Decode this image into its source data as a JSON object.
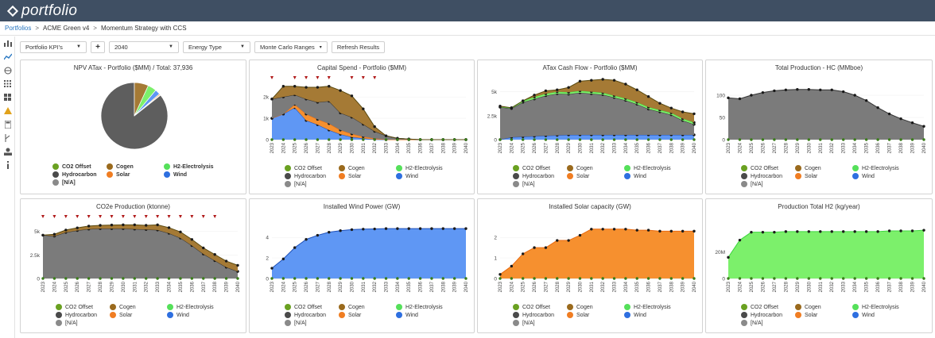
{
  "app": {
    "logo": "portfolio"
  },
  "breadcrumb": {
    "root": "Portfolios",
    "project": "ACME Green v4",
    "scenario": "Momentum Strategy with CCS",
    "sep": ">"
  },
  "sidebar": {
    "icons": [
      "bar-chart-icon",
      "line-chart-icon",
      "globe-icon",
      "grid-icon",
      "dashboard-icon",
      "warning-icon",
      "calculator-icon",
      "branch-icon",
      "upload-user-icon",
      "info-icon"
    ]
  },
  "toolbar": {
    "kpi_select": "Portfolio KPI's",
    "add_label": "+",
    "year_select": "2040",
    "energy_select": "Energy Type",
    "monte_carlo": "Monte Carlo Ranges",
    "refresh": "Refresh Results"
  },
  "legend": {
    "items": [
      {
        "label": "CO2 Offset",
        "color": "#6aa121"
      },
      {
        "label": "Cogen",
        "color": "#9a6a1d"
      },
      {
        "label": "H2-Electrolysis",
        "color": "#55e05a"
      },
      {
        "label": "Hydrocarbon",
        "color": "#4a4a4a"
      },
      {
        "label": "Solar",
        "color": "#f07d22"
      },
      {
        "label": "Wind",
        "color": "#2e6fe0"
      },
      {
        "label": "[N/A]",
        "color": "#8a8a8a"
      }
    ]
  },
  "years": [
    "2023",
    "2024",
    "2025",
    "2026",
    "2027",
    "2028",
    "2029",
    "2030",
    "2031",
    "2032",
    "2033",
    "2034",
    "2035",
    "2036",
    "2037",
    "2038",
    "2039",
    "2040"
  ],
  "colors": {
    "hydrocarbon": "#7b7b7b",
    "cogen": "#a57a35",
    "h2": "#7cf06b",
    "wind": "#5f97f4",
    "solar": "#f6902f",
    "marker": "#b01818"
  },
  "chart_data": [
    {
      "type": "pie",
      "title": "NPV ATax - Portfolio ($MM) / Total: 37,936",
      "slices": [
        {
          "name": "Hydrocarbon",
          "value": 32500
        },
        {
          "name": "Cogen",
          "value": 2600
        },
        {
          "name": "H2-Electrolysis",
          "value": 1600
        },
        {
          "name": "Wind",
          "value": 950
        },
        {
          "name": "Solar",
          "value": 200
        },
        {
          "name": "CO2 Offset",
          "value": 86
        }
      ]
    },
    {
      "type": "area",
      "title": "Capital Spend - Portfolio ($MM)",
      "ylim": [
        0,
        2600
      ],
      "yticks": [
        "0",
        "1k",
        "2k"
      ],
      "ytick_values": [
        0,
        1000,
        2000
      ],
      "series": [
        {
          "name": "Wind",
          "values": [
            1000,
            1200,
            1500,
            900,
            700,
            450,
            250,
            120,
            60,
            10,
            0,
            0,
            0,
            0,
            0,
            0,
            0,
            0
          ]
        },
        {
          "name": "Solar",
          "values": [
            0,
            0,
            150,
            300,
            250,
            300,
            200,
            150,
            80,
            50,
            0,
            0,
            0,
            0,
            0,
            0,
            0,
            0
          ]
        },
        {
          "name": "Hydrocarbon",
          "values": [
            900,
            800,
            450,
            700,
            800,
            1050,
            800,
            780,
            580,
            330,
            180,
            60,
            30,
            0,
            0,
            0,
            0,
            0
          ]
        },
        {
          "name": "Cogen",
          "values": [
            0,
            500,
            400,
            550,
            700,
            700,
            1050,
            1000,
            720,
            220,
            0,
            0,
            0,
            0,
            0,
            0,
            0,
            0
          ]
        }
      ],
      "marker_years": [
        "2023",
        "2025",
        "2026",
        "2027",
        "2028",
        "2030",
        "2031",
        "2032"
      ]
    },
    {
      "type": "area",
      "title": "ATax Cash Flow - Portfolio ($MM)",
      "ylim": [
        0,
        5800
      ],
      "yticks": [
        "0",
        "2.5k",
        "5k"
      ],
      "ytick_values": [
        0,
        2500,
        5000
      ],
      "series": [
        {
          "name": "Wind",
          "values": [
            0,
            250,
            300,
            350,
            400,
            450,
            500,
            500,
            500,
            500,
            500,
            500,
            500,
            500,
            500,
            500,
            500,
            500
          ]
        },
        {
          "name": "Hydrocarbon",
          "values": [
            3400,
            3000,
            3600,
            3900,
            4200,
            4350,
            4250,
            4400,
            4300,
            4200,
            3900,
            3600,
            3200,
            2700,
            2400,
            2100,
            1500,
            1100
          ]
        },
        {
          "name": "H2-Electrolysis",
          "values": [
            0,
            80,
            150,
            200,
            200,
            200,
            200,
            200,
            200,
            200,
            200,
            200,
            200,
            200,
            200,
            200,
            200,
            200
          ]
        },
        {
          "name": "Cogen",
          "values": [
            100,
            0,
            0,
            200,
            300,
            200,
            500,
            1000,
            1200,
            1400,
            1600,
            1500,
            1300,
            1100,
            700,
            500,
            700,
            900
          ]
        }
      ]
    },
    {
      "type": "area",
      "title": "Total Production - HC (MMboe)",
      "ylim": [
        0,
        125
      ],
      "yticks": [
        "0",
        "50",
        "100"
      ],
      "ytick_values": [
        0,
        50,
        100
      ],
      "series": [
        {
          "name": "Hydrocarbon",
          "values": [
            94,
            92,
            100,
            106,
            110,
            112,
            113,
            113,
            112,
            112,
            108,
            100,
            88,
            72,
            58,
            47,
            38,
            30
          ]
        }
      ]
    },
    {
      "type": "area",
      "title": "CO2e Production (ktonne)",
      "ylim": [
        0,
        5900
      ],
      "yticks": [
        "0",
        "2.5k",
        "5k"
      ],
      "ytick_values": [
        0,
        2500,
        5000
      ],
      "series": [
        {
          "name": "Hydrocarbon",
          "values": [
            4600,
            4500,
            4900,
            5100,
            5250,
            5300,
            5300,
            5300,
            5250,
            5200,
            5150,
            4800,
            4300,
            3500,
            2600,
            1900,
            1200,
            750
          ]
        },
        {
          "name": "Cogen",
          "values": [
            0,
            200,
            250,
            280,
            320,
            350,
            380,
            400,
            450,
            450,
            550,
            600,
            650,
            650,
            650,
            650,
            650,
            650
          ]
        }
      ],
      "marker_years": [
        "2023",
        "2024",
        "2025",
        "2026",
        "2027",
        "2028",
        "2029",
        "2030",
        "2031",
        "2032",
        "2033",
        "2034",
        "2035",
        "2036",
        "2037",
        "2038"
      ]
    },
    {
      "type": "area",
      "title": "Installed Wind Power (GW)",
      "ylim": [
        0,
        5.4
      ],
      "yticks": [
        "0",
        "2",
        "4"
      ],
      "ytick_values": [
        0,
        2,
        4
      ],
      "series": [
        {
          "name": "Wind",
          "values": [
            1.0,
            1.9,
            3.0,
            3.8,
            4.2,
            4.5,
            4.65,
            4.75,
            4.8,
            4.82,
            4.85,
            4.85,
            4.85,
            4.85,
            4.85,
            4.85,
            4.85,
            4.85
          ]
        }
      ]
    },
    {
      "type": "area",
      "title": "Installed Solar capacity (GW)",
      "ylim": [
        0,
        2.7
      ],
      "yticks": [
        "0",
        "1",
        "2"
      ],
      "ytick_values": [
        0,
        1,
        2
      ],
      "series": [
        {
          "name": "Solar",
          "values": [
            0.2,
            0.6,
            1.2,
            1.5,
            1.5,
            1.85,
            1.85,
            2.1,
            2.4,
            2.4,
            2.4,
            2.4,
            2.35,
            2.35,
            2.3,
            2.3,
            2.3,
            2.3
          ]
        }
      ]
    },
    {
      "type": "area",
      "title": "Production Total H2 (kg/year)",
      "ylim": [
        0,
        42000000
      ],
      "yticks": [
        "0",
        "20M"
      ],
      "ytick_values": [
        0,
        20000000
      ],
      "series": [
        {
          "name": "H2-Electrolysis",
          "values": [
            16000000,
            29000000,
            35000000,
            35000000,
            35000000,
            35500000,
            35500000,
            35500000,
            35500000,
            35500000,
            35500000,
            35500000,
            35500000,
            35500000,
            36000000,
            36000000,
            36000000,
            36500000
          ]
        }
      ]
    }
  ]
}
